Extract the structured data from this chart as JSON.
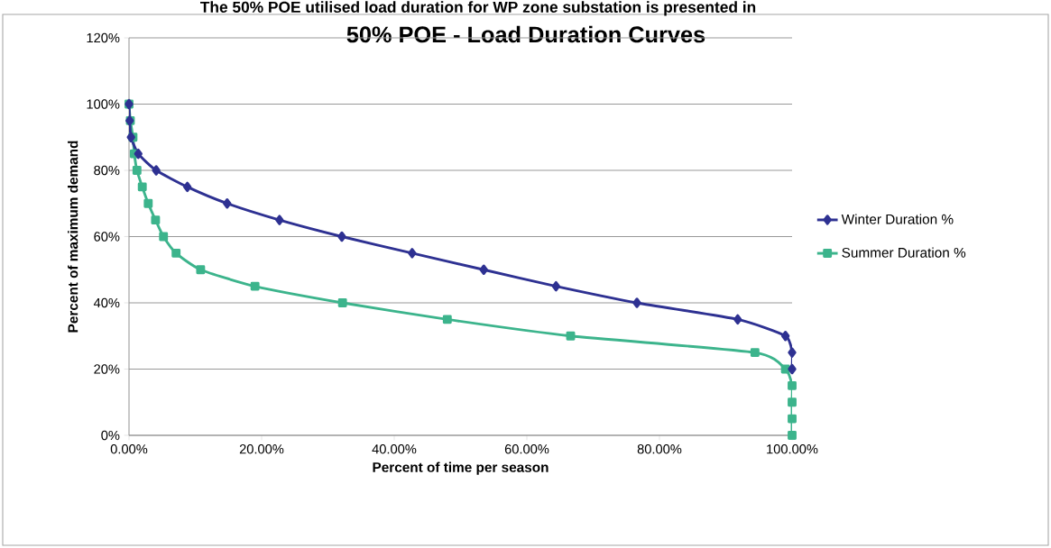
{
  "chart_data": {
    "type": "line",
    "title": "50% POE - Load Duration Curves",
    "xlabel": "Percent of time per season",
    "ylabel": "Percent of maximum demand",
    "annotations": [
      "The 50% POE utilised load duration for WP zone substation is presented in"
    ],
    "series": [
      {
        "name": "Winter Duration %",
        "color": "#2e3192",
        "marker": "diamond",
        "x": [
          0,
          0.1,
          0.3,
          1.4,
          4.1,
          8.8,
          14.8,
          22.7,
          32.1,
          42.7,
          53.5,
          64.4,
          76.6,
          91.8,
          99.0,
          100,
          100
        ],
        "values": [
          100,
          95,
          90,
          85,
          80,
          75,
          70,
          65,
          60,
          55,
          50,
          45,
          40,
          35,
          30,
          25,
          20
        ]
      },
      {
        "name": "Summer Duration %",
        "color": "#3cb48c",
        "marker": "square",
        "x": [
          0,
          0.2,
          0.6,
          0.8,
          1.2,
          2.0,
          2.9,
          4.0,
          5.2,
          7.1,
          10.8,
          19.0,
          32.2,
          48.0,
          66.6,
          94.4,
          99.0,
          100,
          100,
          100,
          100
        ],
        "values": [
          100,
          95,
          90,
          85,
          80,
          75,
          70,
          65,
          60,
          55,
          50,
          45,
          40,
          35,
          30,
          25,
          20,
          15,
          10,
          5,
          0
        ]
      }
    ],
    "xlim": [
      0,
      100
    ],
    "ylim": [
      0,
      120
    ],
    "xticks": [
      {
        "value": 0,
        "label": "0.00%"
      },
      {
        "value": 20,
        "label": "20.00%"
      },
      {
        "value": 40,
        "label": "40.00%"
      },
      {
        "value": 60,
        "label": "60.00%"
      },
      {
        "value": 80,
        "label": "80.00%"
      },
      {
        "value": 100,
        "label": "100.00%"
      }
    ],
    "yticks": [
      {
        "value": 0,
        "label": "0%"
      },
      {
        "value": 20,
        "label": "20%"
      },
      {
        "value": 40,
        "label": "40%"
      },
      {
        "value": 60,
        "label": "60%"
      },
      {
        "value": 80,
        "label": "80%"
      },
      {
        "value": 100,
        "label": "100%"
      },
      {
        "value": 120,
        "label": "120%"
      }
    ],
    "grid": "y",
    "legend": "right",
    "line_style": "solid"
  }
}
